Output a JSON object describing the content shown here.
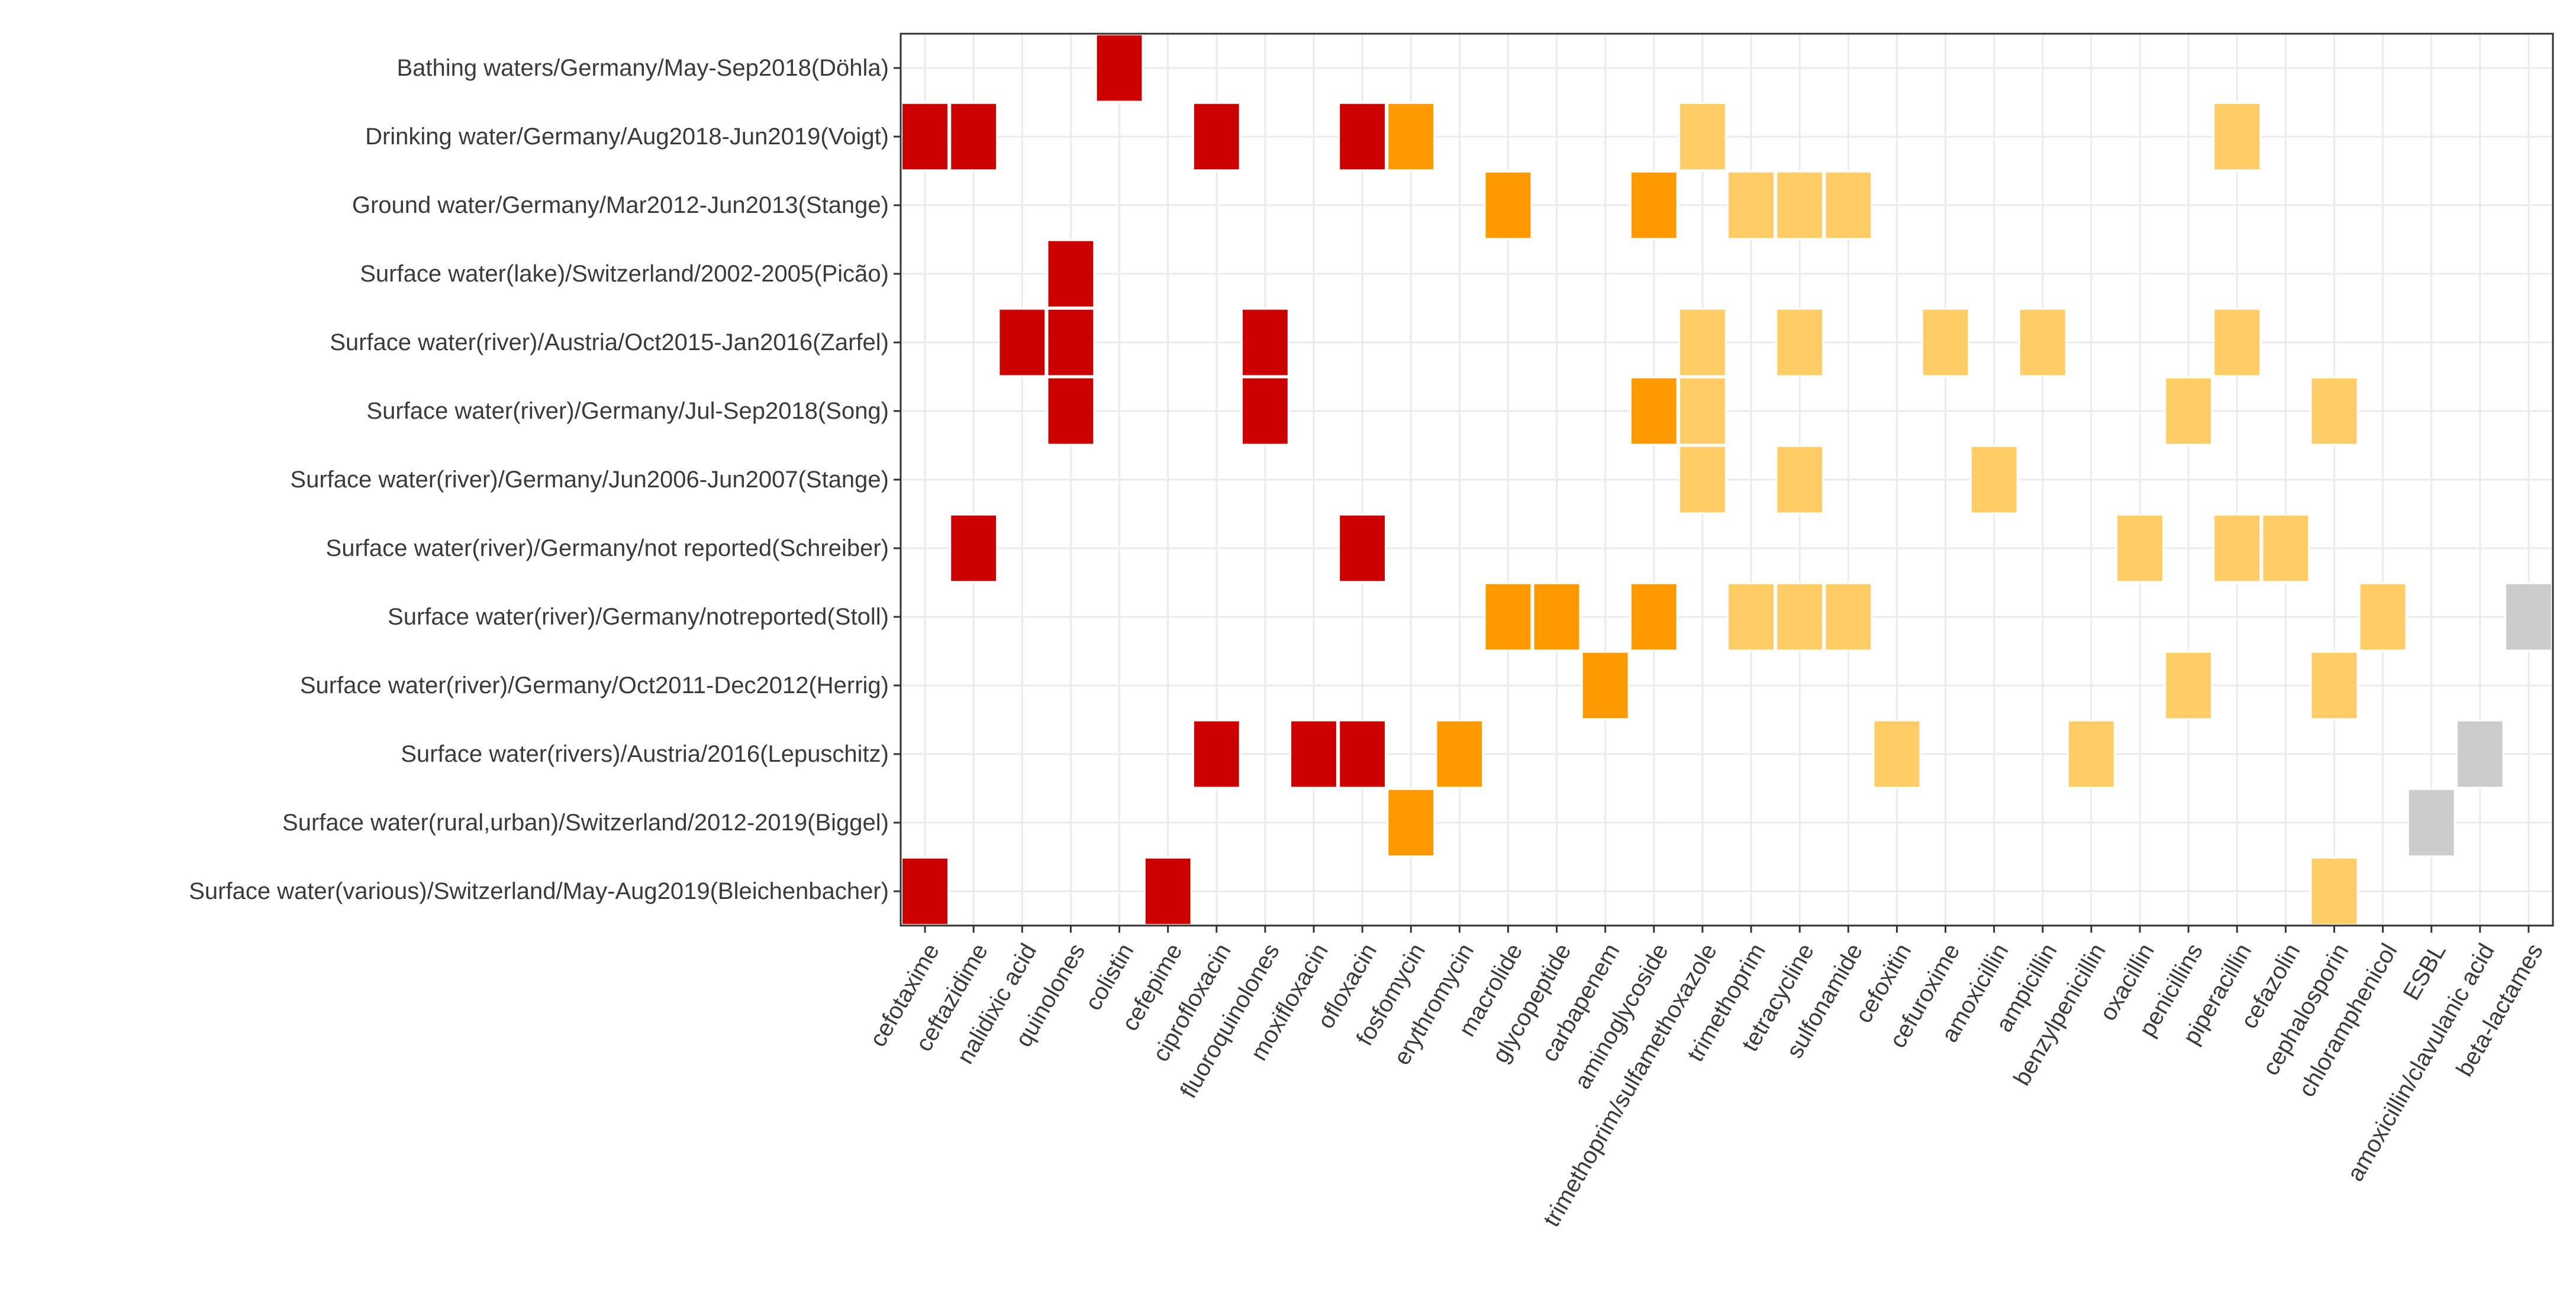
{
  "chart_data": {
    "type": "heatmap",
    "title": "",
    "xlabel": "",
    "ylabel": "",
    "legend": "none",
    "grid": true,
    "colors": {
      "red": "#cc0000",
      "orange": "#ff9900",
      "lightorange": "#ffcc66",
      "gray": "#cccccc"
    },
    "categories": [
      "cefotaxime",
      "ceftazidime",
      "nalidixic acid",
      "quinolones",
      "colistin",
      "cefepime",
      "ciprofloxacin",
      "fluoroquinolones",
      "moxifloxacin",
      "ofloxacin",
      "fosfomycin",
      "erythromycin",
      "macrolide",
      "glycopeptide",
      "carbapenem",
      "aminoglycoside",
      "trimethoprim/sulfamethoxazole",
      "trimethoprim",
      "tetracycline",
      "sulfonamide",
      "cefoxitin",
      "cefuroxime",
      "amoxicillin",
      "ampicillin",
      "benzylpenicillin",
      "oxacillin",
      "penicillins",
      "piperacillin",
      "cefazolin",
      "cephalosporin",
      "chloramphenicol",
      "ESBL",
      "amoxicillin/clavulanic acid",
      "beta-lactames"
    ],
    "rows": [
      "Bathing waters/Germany/May-Sep2018(Döhla)",
      "Drinking water/Germany/Aug2018-Jun2019(Voigt)",
      "Ground water/Germany/Mar2012-Jun2013(Stange)",
      "Surface water(lake)/Switzerland/2002-2005(Picão)",
      "Surface water(river)/Austria/Oct2015-Jan2016(Zarfel)",
      "Surface water(river)/Germany/Jul-Sep2018(Song)",
      "Surface water(river)/Germany/Jun2006-Jun2007(Stange)",
      "Surface water(river)/Germany/not reported(Schreiber)",
      "Surface water(river)/Germany/notreported(Stoll)",
      "Surface water(river)/Germany/Oct2011-Dec2012(Herrig)",
      "Surface water(rivers)/Austria/2016(Lepuschitz)",
      "Surface water(rural,urban)/Switzerland/2012-2019(Biggel)",
      "Surface water(various)/Switzerland/May-Aug2019(Bleichenbacher)"
    ],
    "cells": [
      {
        "row": 0,
        "col": 4,
        "color": "red"
      },
      {
        "row": 1,
        "col": 0,
        "color": "red"
      },
      {
        "row": 1,
        "col": 1,
        "color": "red"
      },
      {
        "row": 1,
        "col": 6,
        "color": "red"
      },
      {
        "row": 1,
        "col": 9,
        "color": "red"
      },
      {
        "row": 1,
        "col": 10,
        "color": "orange"
      },
      {
        "row": 1,
        "col": 16,
        "color": "lightorange"
      },
      {
        "row": 1,
        "col": 27,
        "color": "lightorange"
      },
      {
        "row": 2,
        "col": 12,
        "color": "orange"
      },
      {
        "row": 2,
        "col": 15,
        "color": "orange"
      },
      {
        "row": 2,
        "col": 17,
        "color": "lightorange"
      },
      {
        "row": 2,
        "col": 18,
        "color": "lightorange"
      },
      {
        "row": 2,
        "col": 19,
        "color": "lightorange"
      },
      {
        "row": 3,
        "col": 3,
        "color": "red"
      },
      {
        "row": 4,
        "col": 2,
        "color": "red"
      },
      {
        "row": 4,
        "col": 3,
        "color": "red"
      },
      {
        "row": 4,
        "col": 7,
        "color": "red"
      },
      {
        "row": 4,
        "col": 16,
        "color": "lightorange"
      },
      {
        "row": 4,
        "col": 18,
        "color": "lightorange"
      },
      {
        "row": 4,
        "col": 21,
        "color": "lightorange"
      },
      {
        "row": 4,
        "col": 23,
        "color": "lightorange"
      },
      {
        "row": 4,
        "col": 27,
        "color": "lightorange"
      },
      {
        "row": 5,
        "col": 3,
        "color": "red"
      },
      {
        "row": 5,
        "col": 7,
        "color": "red"
      },
      {
        "row": 5,
        "col": 15,
        "color": "orange"
      },
      {
        "row": 5,
        "col": 16,
        "color": "lightorange"
      },
      {
        "row": 5,
        "col": 26,
        "color": "lightorange"
      },
      {
        "row": 5,
        "col": 29,
        "color": "lightorange"
      },
      {
        "row": 6,
        "col": 16,
        "color": "lightorange"
      },
      {
        "row": 6,
        "col": 18,
        "color": "lightorange"
      },
      {
        "row": 6,
        "col": 22,
        "color": "lightorange"
      },
      {
        "row": 7,
        "col": 1,
        "color": "red"
      },
      {
        "row": 7,
        "col": 9,
        "color": "red"
      },
      {
        "row": 7,
        "col": 25,
        "color": "lightorange"
      },
      {
        "row": 7,
        "col": 27,
        "color": "lightorange"
      },
      {
        "row": 7,
        "col": 28,
        "color": "lightorange"
      },
      {
        "row": 8,
        "col": 12,
        "color": "orange"
      },
      {
        "row": 8,
        "col": 13,
        "color": "orange"
      },
      {
        "row": 8,
        "col": 15,
        "color": "orange"
      },
      {
        "row": 8,
        "col": 17,
        "color": "lightorange"
      },
      {
        "row": 8,
        "col": 18,
        "color": "lightorange"
      },
      {
        "row": 8,
        "col": 19,
        "color": "lightorange"
      },
      {
        "row": 8,
        "col": 30,
        "color": "lightorange"
      },
      {
        "row": 8,
        "col": 33,
        "color": "gray"
      },
      {
        "row": 9,
        "col": 14,
        "color": "orange"
      },
      {
        "row": 9,
        "col": 26,
        "color": "lightorange"
      },
      {
        "row": 9,
        "col": 29,
        "color": "lightorange"
      },
      {
        "row": 10,
        "col": 6,
        "color": "red"
      },
      {
        "row": 10,
        "col": 8,
        "color": "red"
      },
      {
        "row": 10,
        "col": 9,
        "color": "red"
      },
      {
        "row": 10,
        "col": 11,
        "color": "orange"
      },
      {
        "row": 10,
        "col": 20,
        "color": "lightorange"
      },
      {
        "row": 10,
        "col": 24,
        "color": "lightorange"
      },
      {
        "row": 10,
        "col": 32,
        "color": "gray"
      },
      {
        "row": 11,
        "col": 10,
        "color": "orange"
      },
      {
        "row": 11,
        "col": 31,
        "color": "gray"
      },
      {
        "row": 12,
        "col": 0,
        "color": "red"
      },
      {
        "row": 12,
        "col": 5,
        "color": "red"
      },
      {
        "row": 12,
        "col": 29,
        "color": "lightorange"
      }
    ]
  }
}
